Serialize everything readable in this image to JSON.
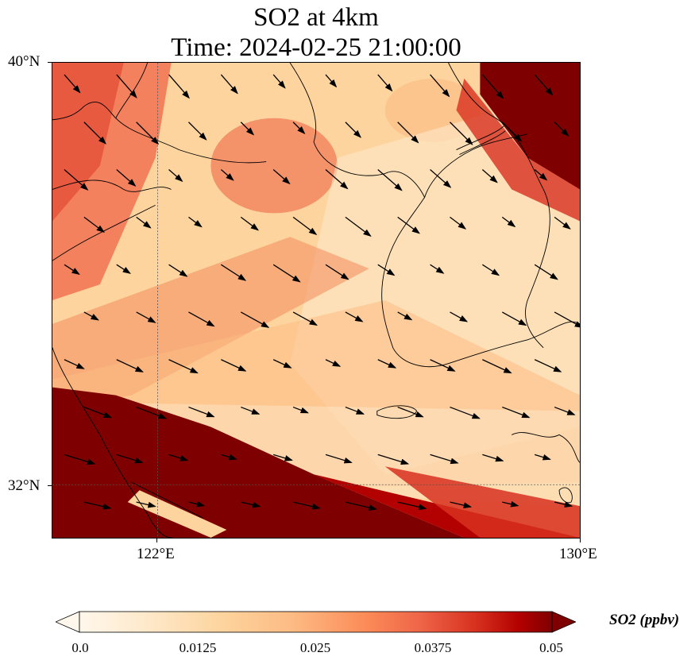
{
  "title": {
    "line1": "SO2 at 4km",
    "line2": "Time: 2024-02-25 21:00:00"
  },
  "map": {
    "lat_range": [
      31.0,
      40.0
    ],
    "lon_range": [
      120.0,
      130.0
    ],
    "lat_ticks": [
      {
        "value": 40,
        "label": "40°N"
      },
      {
        "value": 32,
        "label": "32°N"
      }
    ],
    "lon_ticks": [
      {
        "value": 122,
        "label": "122°E"
      },
      {
        "value": 130,
        "label": "130°E"
      }
    ],
    "gridlines": "dotted",
    "colormap": "OrRd",
    "colors": {
      "low": "#fff7ec",
      "mid": "#fdd49e",
      "high": "#d7301f",
      "max": "#7f0000",
      "coast": "#000000"
    },
    "overlay": "wind vectors"
  },
  "colorbar": {
    "title": "SO2 (ppbv)",
    "range": [
      0.0,
      0.05
    ],
    "extend": "both",
    "tick_labels": [
      "0.0",
      "0.0125",
      "0.025",
      "0.0375",
      "0.05"
    ]
  }
}
